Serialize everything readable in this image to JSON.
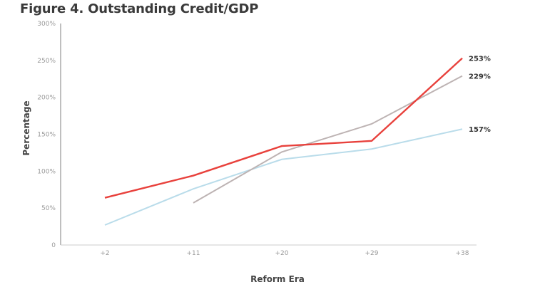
{
  "chart_data": {
    "type": "line",
    "title": "Figure 4. Outstanding Credit/GDP",
    "xlabel": "Reform Era",
    "ylabel": "Percentage",
    "categories": [
      "+2",
      "+11",
      "+20",
      "+29",
      "+38"
    ],
    "ylim": [
      0,
      300
    ],
    "yticks": [
      0,
      50,
      100,
      150,
      200,
      250,
      300
    ],
    "ytick_labels": [
      "0",
      "50%",
      "100%",
      "150%",
      "200%",
      "250%",
      "300%"
    ],
    "grid": false,
    "series": [
      {
        "name": "red",
        "color": "#e8413c",
        "values": [
          64,
          94,
          134,
          141,
          253
        ],
        "end_label": "253%"
      },
      {
        "name": "gray",
        "color": "#bdb3b3",
        "values": [
          null,
          57,
          126,
          164,
          229
        ],
        "end_label": "229%"
      },
      {
        "name": "light-blue",
        "color": "#b9dcea",
        "values": [
          27,
          76,
          116,
          130,
          157
        ],
        "end_label": "157%"
      }
    ]
  }
}
